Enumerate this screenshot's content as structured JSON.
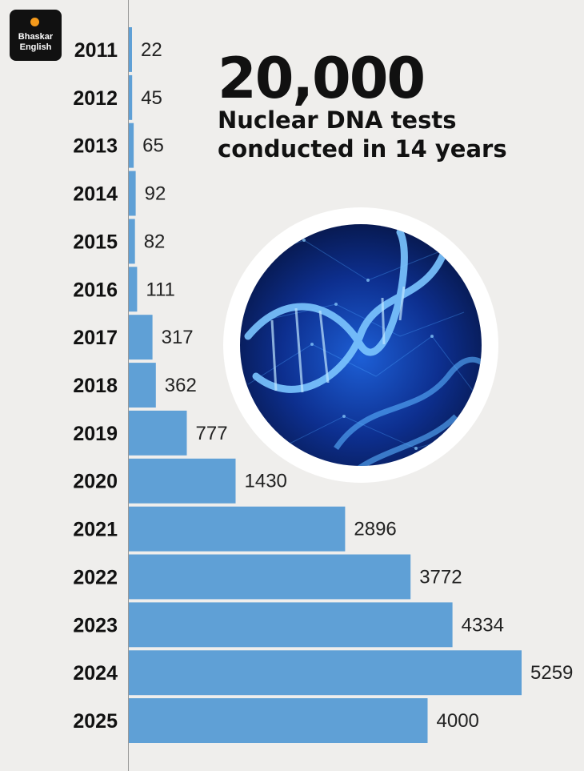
{
  "brand": {
    "line1": "Bhaskar",
    "line2": "English",
    "accent_color": "#f59a1b"
  },
  "headline": {
    "number": "20,000",
    "line1": "Nuclear DNA tests",
    "line2": "conducted in 14 years"
  },
  "image": {
    "icon": "dna-helix-icon"
  },
  "chart_data": {
    "type": "bar",
    "orientation": "horizontal",
    "categories": [
      "2011",
      "2012",
      "2013",
      "2014",
      "2015",
      "2016",
      "2017",
      "2018",
      "2019",
      "2020",
      "2021",
      "2022",
      "2023",
      "2024",
      "2025"
    ],
    "values": [
      22,
      45,
      65,
      92,
      82,
      111,
      317,
      362,
      777,
      1430,
      2896,
      3772,
      4334,
      5259,
      4000
    ],
    "bar_color": "#5fa0d6",
    "data_labels": true,
    "grid": false
  }
}
